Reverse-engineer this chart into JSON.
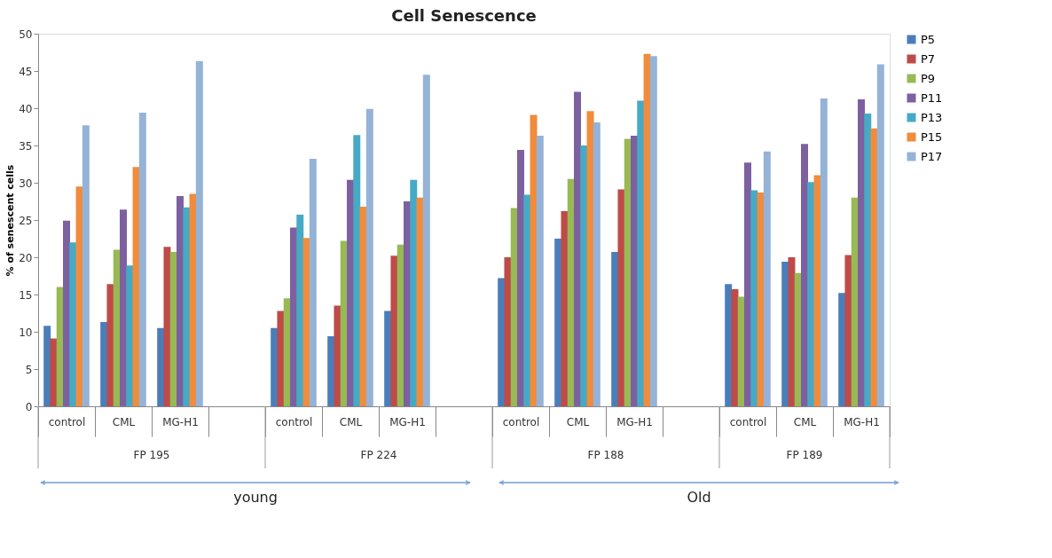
{
  "chart_data": {
    "type": "bar",
    "title": "Cell Senescence",
    "ylabel": "% of senescent cells",
    "categories": [
      "control",
      "CML",
      "MG-H1",
      null,
      "control",
      "CML",
      "MG-H1",
      null,
      "control",
      "CML",
      "MG-H1",
      null,
      "control",
      "CML",
      "MG-H1"
    ],
    "series": [
      {
        "name": "P5",
        "color": "#4a7ebb",
        "values": [
          10.8,
          11.3,
          10.5,
          null,
          10.5,
          9.4,
          12.8,
          null,
          17.2,
          22.5,
          20.7,
          null,
          16.4,
          19.4,
          15.2
        ]
      },
      {
        "name": "P7",
        "color": "#be4b48",
        "values": [
          9.1,
          16.4,
          21.4,
          null,
          12.8,
          13.5,
          20.2,
          null,
          20.0,
          26.2,
          29.1,
          null,
          15.7,
          20.0,
          20.3
        ]
      },
      {
        "name": "P9",
        "color": "#98b954",
        "values": [
          16.0,
          21.0,
          20.7,
          null,
          14.5,
          22.2,
          21.7,
          null,
          26.6,
          30.5,
          35.9,
          null,
          14.7,
          17.9,
          28.0
        ]
      },
      {
        "name": "P11",
        "color": "#7d60a0",
        "values": [
          24.9,
          26.4,
          28.2,
          null,
          24.0,
          30.4,
          27.5,
          null,
          34.4,
          42.2,
          36.3,
          null,
          32.7,
          35.2,
          41.2
        ]
      },
      {
        "name": "P13",
        "color": "#46aac5",
        "values": [
          22.0,
          18.9,
          26.7,
          null,
          25.7,
          36.4,
          30.4,
          null,
          28.4,
          35.0,
          41.0,
          null,
          29.0,
          30.1,
          39.3
        ]
      },
      {
        "name": "P15",
        "color": "#f08c3c",
        "values": [
          29.5,
          32.1,
          28.5,
          null,
          22.6,
          26.8,
          28.0,
          null,
          39.1,
          39.6,
          47.3,
          null,
          28.7,
          31.0,
          37.3
        ]
      },
      {
        "name": "P17",
        "color": "#95b3d7",
        "values": [
          37.7,
          39.4,
          46.3,
          null,
          33.2,
          39.9,
          44.5,
          null,
          36.3,
          38.1,
          47.0,
          null,
          34.2,
          41.3,
          45.9
        ]
      }
    ],
    "ylim": [
      0,
      50
    ],
    "yticks": [
      0,
      5,
      10,
      15,
      20,
      25,
      30,
      35,
      40,
      45,
      50
    ],
    "grid": false,
    "legend": "right",
    "annotations": [
      "FP 195",
      "FP 224",
      "FP 188",
      "FP 189",
      "young",
      "Old"
    ]
  }
}
